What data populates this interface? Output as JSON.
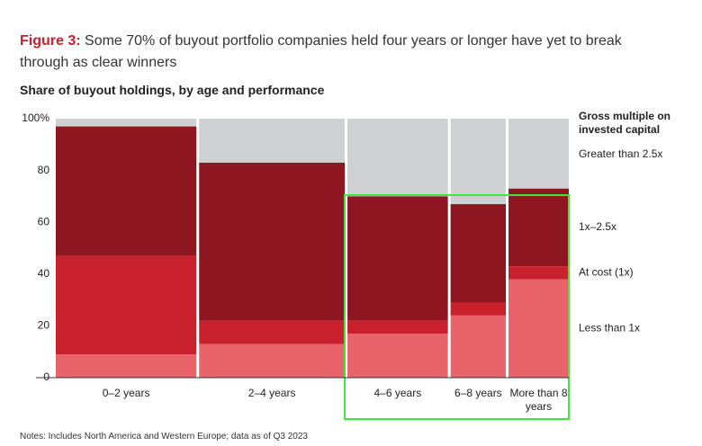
{
  "chart_data": {
    "type": "marimekko",
    "figure_label": "Figure 3:",
    "title": "Some 70% of buyout portfolio companies held four years or longer have yet to break through as clear winners",
    "subtitle": "Share of buyout holdings, by age and performance",
    "legend_title": "Gross multiple on invested capital",
    "categories": [
      "0–2 years",
      "2–4 years",
      "4–6 years",
      "6–8 years",
      "More than 8 years"
    ],
    "widths": [
      28,
      29,
      20,
      11,
      12
    ],
    "series": [
      {
        "name": "Less than 1x",
        "color": "#e8636a",
        "values": [
          9,
          13,
          17,
          24,
          38
        ]
      },
      {
        "name": "At cost (1x)",
        "color": "#c8202c",
        "values": [
          38,
          9,
          5,
          5,
          5
        ]
      },
      {
        "name": "1x–2.5x",
        "color": "#8e1620",
        "values": [
          50,
          61,
          48,
          38,
          30
        ]
      },
      {
        "name": "Greater than 2.5x",
        "color": "#cfd0d2",
        "values": [
          3,
          17,
          30,
          33,
          27
        ]
      }
    ],
    "ylim": [
      0,
      100
    ],
    "yticks": [
      0,
      20,
      40,
      60,
      80,
      {
        "value": 100,
        "label": "100%"
      }
    ],
    "note": "Notes: Includes North America and Western Europe; data as of Q3 2023"
  }
}
